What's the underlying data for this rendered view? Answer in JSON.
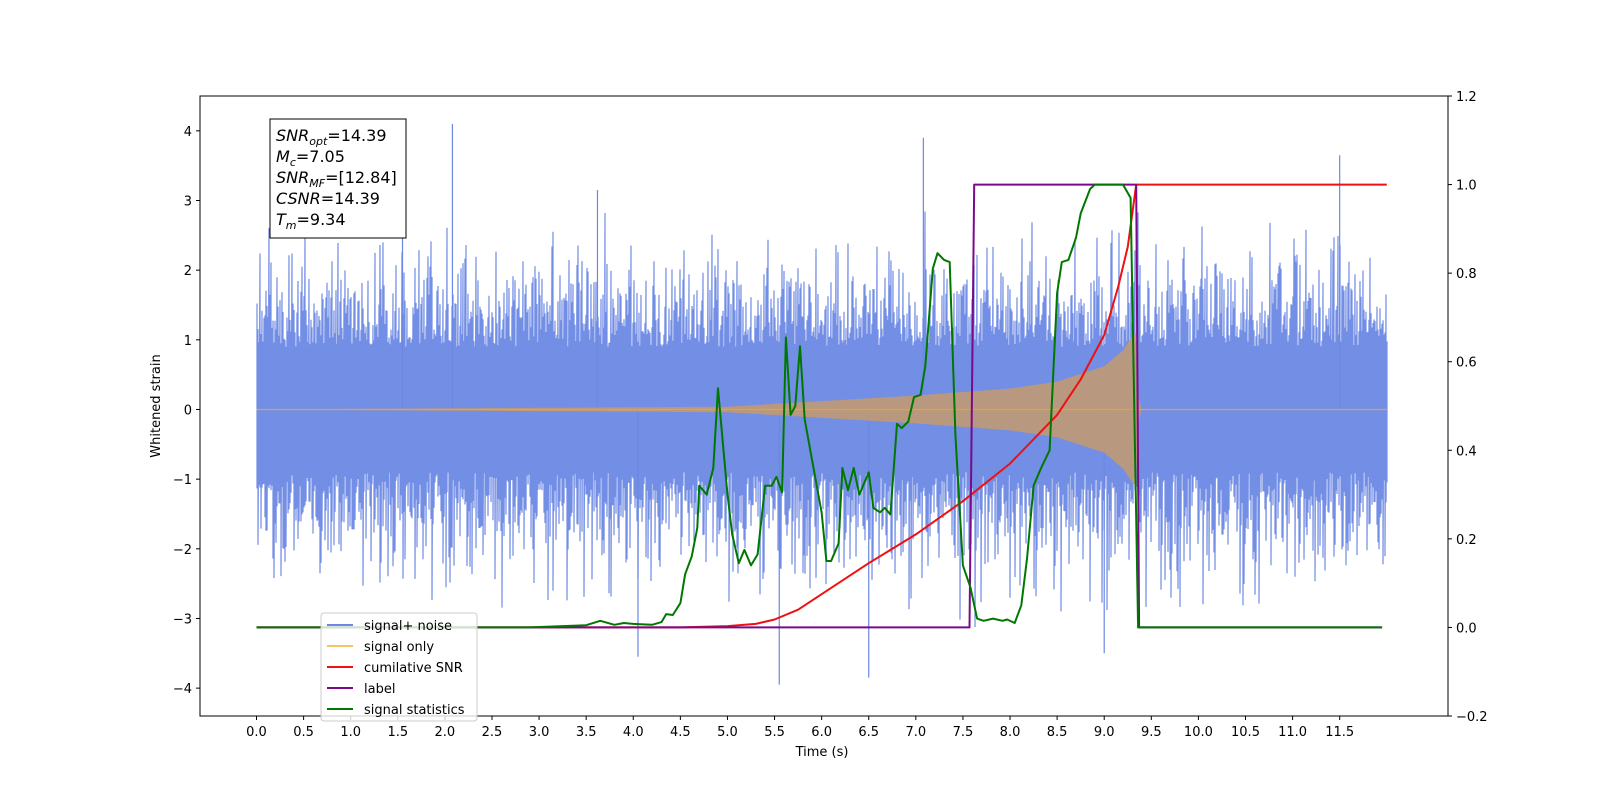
{
  "chart_data": {
    "type": "line",
    "xlabel": "Time (s)",
    "ylabel": "Whitened strain",
    "xlim": [
      -0.6,
      12.65
    ],
    "ylim_left": [
      -4.4,
      4.5
    ],
    "ylim_right": [
      -0.2,
      1.2
    ],
    "x_ticks": [
      "0.0",
      "0.5",
      "1.0",
      "1.5",
      "2.0",
      "2.5",
      "3.0",
      "3.5",
      "4.0",
      "4.5",
      "5.0",
      "5.5",
      "6.0",
      "6.5",
      "7.0",
      "7.5",
      "8.0",
      "8.5",
      "9.0",
      "9.5",
      "10.0",
      "10.5",
      "11.0",
      "11.5"
    ],
    "y_ticks_left": [
      "4",
      "3",
      "2",
      "1",
      "0",
      "−1",
      "−2",
      "−3",
      "−4"
    ],
    "y_ticks_right": [
      "1.2",
      "1.0",
      "0.8",
      "0.6",
      "0.4",
      "0.2",
      "0.0",
      "−0.2"
    ],
    "grid": false,
    "legend_position": "lower-left",
    "annotation": {
      "lines": [
        {
          "var": "SNR",
          "sub": "opt",
          "value": "=14.39"
        },
        {
          "var": "M",
          "sub": "c",
          "value": "=7.05"
        },
        {
          "var": "SNR",
          "sub": "MF",
          "value": "=[12.84]"
        },
        {
          "var": "CSNR",
          "sub": "",
          "value": "=14.39"
        },
        {
          "var": "T",
          "sub": "m",
          "value": "=9.34"
        }
      ]
    },
    "series": [
      {
        "name": "signal+ noise",
        "axis": "left",
        "color": "#6b88e4",
        "kind": "noise",
        "x_range": [
          0.0,
          12.0
        ],
        "band_low": -2.7,
        "band_high": 2.5,
        "spikes": [
          {
            "x": 2.08,
            "y": 4.1
          },
          {
            "x": 7.08,
            "y": 3.9
          },
          {
            "x": 11.5,
            "y": 3.65
          },
          {
            "x": 5.55,
            "y": -3.95
          },
          {
            "x": 6.5,
            "y": -3.85
          },
          {
            "x": 9.0,
            "y": -3.5
          },
          {
            "x": 4.05,
            "y": -3.55
          },
          {
            "x": 1.55,
            "y": 3.2
          },
          {
            "x": 3.62,
            "y": 3.15
          }
        ]
      },
      {
        "name": "signal only",
        "axis": "left",
        "color": "#f0a030",
        "kind": "chirp",
        "merger_time": 9.34,
        "envelope": [
          {
            "x": 0.0,
            "y": 0.0
          },
          {
            "x": 5.0,
            "y": 0.04
          },
          {
            "x": 6.0,
            "y": 0.12
          },
          {
            "x": 7.0,
            "y": 0.2
          },
          {
            "x": 8.0,
            "y": 0.3
          },
          {
            "x": 8.5,
            "y": 0.4
          },
          {
            "x": 9.0,
            "y": 0.62
          },
          {
            "x": 9.2,
            "y": 0.85
          },
          {
            "x": 9.3,
            "y": 1.05
          },
          {
            "x": 9.34,
            "y": 1.1
          }
        ]
      },
      {
        "name": "cumilative SNR",
        "axis": "right",
        "color": "#ee1111",
        "points": [
          [
            0.0,
            0.0
          ],
          [
            4.5,
            0.0
          ],
          [
            5.0,
            0.003
          ],
          [
            5.3,
            0.008
          ],
          [
            5.5,
            0.018
          ],
          [
            5.75,
            0.04
          ],
          [
            6.0,
            0.075
          ],
          [
            6.5,
            0.145
          ],
          [
            7.0,
            0.21
          ],
          [
            7.5,
            0.285
          ],
          [
            8.0,
            0.37
          ],
          [
            8.5,
            0.48
          ],
          [
            8.75,
            0.56
          ],
          [
            9.0,
            0.66
          ],
          [
            9.15,
            0.77
          ],
          [
            9.25,
            0.86
          ],
          [
            9.34,
            1.0
          ],
          [
            12.0,
            1.0
          ]
        ]
      },
      {
        "name": "label",
        "axis": "right",
        "color": "#7a0a8a",
        "points": [
          [
            0.0,
            0.0
          ],
          [
            7.57,
            0.0
          ],
          [
            7.62,
            1.0
          ],
          [
            9.34,
            1.0
          ],
          [
            9.37,
            0.0
          ],
          [
            11.95,
            0.0
          ]
        ]
      },
      {
        "name": "signal statistics",
        "axis": "right",
        "color": "#007800",
        "points": [
          [
            0.0,
            0.0
          ],
          [
            2.9,
            0.0
          ],
          [
            3.5,
            0.005
          ],
          [
            3.65,
            0.015
          ],
          [
            3.8,
            0.006
          ],
          [
            3.9,
            0.01
          ],
          [
            4.0,
            0.008
          ],
          [
            4.2,
            0.006
          ],
          [
            4.3,
            0.012
          ],
          [
            4.35,
            0.03
          ],
          [
            4.42,
            0.028
          ],
          [
            4.5,
            0.055
          ],
          [
            4.55,
            0.12
          ],
          [
            4.62,
            0.16
          ],
          [
            4.68,
            0.225
          ],
          [
            4.7,
            0.32
          ],
          [
            4.78,
            0.3
          ],
          [
            4.85,
            0.36
          ],
          [
            4.9,
            0.54
          ],
          [
            4.95,
            0.42
          ],
          [
            5.0,
            0.3
          ],
          [
            5.05,
            0.21
          ],
          [
            5.12,
            0.145
          ],
          [
            5.18,
            0.175
          ],
          [
            5.25,
            0.14
          ],
          [
            5.32,
            0.165
          ],
          [
            5.4,
            0.32
          ],
          [
            5.47,
            0.32
          ],
          [
            5.52,
            0.34
          ],
          [
            5.58,
            0.305
          ],
          [
            5.62,
            0.655
          ],
          [
            5.67,
            0.48
          ],
          [
            5.72,
            0.5
          ],
          [
            5.77,
            0.635
          ],
          [
            5.82,
            0.47
          ],
          [
            5.88,
            0.4
          ],
          [
            6.0,
            0.26
          ],
          [
            6.05,
            0.15
          ],
          [
            6.1,
            0.15
          ],
          [
            6.18,
            0.19
          ],
          [
            6.22,
            0.36
          ],
          [
            6.28,
            0.31
          ],
          [
            6.34,
            0.36
          ],
          [
            6.4,
            0.3
          ],
          [
            6.5,
            0.35
          ],
          [
            6.55,
            0.27
          ],
          [
            6.62,
            0.26
          ],
          [
            6.67,
            0.27
          ],
          [
            6.73,
            0.255
          ],
          [
            6.8,
            0.46
          ],
          [
            6.85,
            0.45
          ],
          [
            6.92,
            0.465
          ],
          [
            6.98,
            0.52
          ],
          [
            7.05,
            0.525
          ],
          [
            7.1,
            0.59
          ],
          [
            7.18,
            0.81
          ],
          [
            7.23,
            0.845
          ],
          [
            7.3,
            0.83
          ],
          [
            7.36,
            0.825
          ],
          [
            7.42,
            0.435
          ],
          [
            7.5,
            0.14
          ],
          [
            7.58,
            0.09
          ],
          [
            7.65,
            0.02
          ],
          [
            7.72,
            0.015
          ],
          [
            7.82,
            0.02
          ],
          [
            7.92,
            0.015
          ],
          [
            7.97,
            0.018
          ],
          [
            8.05,
            0.01
          ],
          [
            8.12,
            0.05
          ],
          [
            8.18,
            0.155
          ],
          [
            8.25,
            0.32
          ],
          [
            8.33,
            0.36
          ],
          [
            8.42,
            0.4
          ],
          [
            8.5,
            0.755
          ],
          [
            8.55,
            0.825
          ],
          [
            8.62,
            0.83
          ],
          [
            8.7,
            0.88
          ],
          [
            8.75,
            0.935
          ],
          [
            8.85,
            0.99
          ],
          [
            8.9,
            1.0
          ],
          [
            9.2,
            1.0
          ],
          [
            9.28,
            0.97
          ],
          [
            9.36,
            0.0
          ],
          [
            11.95,
            0.0
          ]
        ]
      }
    ]
  }
}
